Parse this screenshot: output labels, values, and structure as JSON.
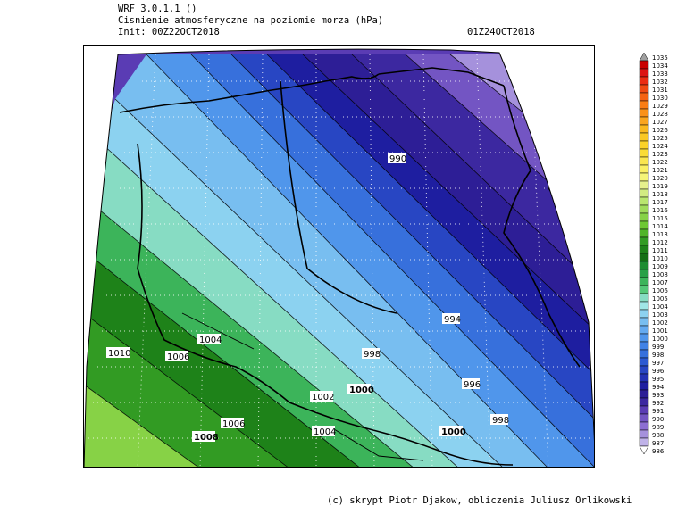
{
  "header": {
    "model": "WRF 3.0.1.1 ()",
    "variable": "Cisnienie atmosferyczne na poziomie morza (hPa)",
    "init": "Init: 00Z22OCT2018",
    "valid": "01Z24OCT2018"
  },
  "map": {
    "region": "Poland",
    "contour_labels": [
      "990",
      "994",
      "998",
      "996",
      "998",
      "1000",
      "1000",
      "1002",
      "1004",
      "1004",
      "1006",
      "1006",
      "1008",
      "1010"
    ]
  },
  "colorbar": {
    "labels": [
      "1035",
      "1034",
      "1033",
      "1032",
      "1031",
      "1030",
      "1029",
      "1028",
      "1027",
      "1026",
      "1025",
      "1024",
      "1023",
      "1022",
      "1021",
      "1020",
      "1019",
      "1018",
      "1017",
      "1016",
      "1015",
      "1014",
      "1013",
      "1012",
      "1011",
      "1010",
      "1009",
      "1008",
      "1007",
      "1006",
      "1005",
      "1004",
      "1003",
      "1002",
      "1001",
      "1000",
      "999",
      "998",
      "997",
      "996",
      "995",
      "994",
      "993",
      "992",
      "991",
      "990",
      "989",
      "988",
      "987",
      "986"
    ],
    "colors": [
      "#a0a0a0",
      "#c80000",
      "#dc1414",
      "#eb2d14",
      "#f04b14",
      "#f56414",
      "#fa7d14",
      "#fa9119",
      "#faa51e",
      "#fab91e",
      "#fac823",
      "#fad228",
      "#fadc37",
      "#fae650",
      "#faf064",
      "#f5f578",
      "#e6f08c",
      "#d2eb82",
      "#b9e66e",
      "#a0dc5a",
      "#87d246",
      "#6ec832",
      "#50b428",
      "#329b23",
      "#1e8219",
      "#146e14",
      "#1e8c32",
      "#28a046",
      "#3cb45a",
      "#55c878",
      "#87dcc3",
      "#a0e6e6",
      "#8cd2f0",
      "#78bef0",
      "#64aaf0",
      "#5096eb",
      "#4182e6",
      "#3770dc",
      "#2d5ad2",
      "#2846c3",
      "#2332b4",
      "#1e1ea0",
      "#2d1e96",
      "#3c28a0",
      "#5a3cb4",
      "#7355c3",
      "#8c6ed2",
      "#a591dc",
      "#bfb2e8",
      "#ffffff"
    ]
  },
  "credit": "(c) skrypt Piotr Djakow, obliczenia Juliusz Orlikowski"
}
